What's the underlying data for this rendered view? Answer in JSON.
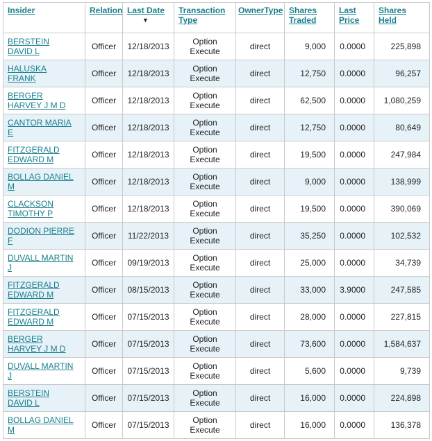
{
  "colors": {
    "link": "#1a7f8e",
    "row_alt": "#e6f2f8",
    "border": "#c9c9c9",
    "text": "#222222"
  },
  "table": {
    "sort_icon": "▼",
    "sorted_column": "Last Date",
    "sort_direction": "descending",
    "columns": [
      {
        "key": "insider",
        "label": "Insider"
      },
      {
        "key": "relation",
        "label": "Relation"
      },
      {
        "key": "last_date",
        "label": "Last Date"
      },
      {
        "key": "transaction_type",
        "label": "Transaction Type"
      },
      {
        "key": "owner_type",
        "label": "OwnerType"
      },
      {
        "key": "shares_traded",
        "label": "Shares Traded"
      },
      {
        "key": "last_price",
        "label": "Last Price"
      },
      {
        "key": "shares_held",
        "label": "Shares Held"
      }
    ],
    "rows": [
      {
        "insider": "BERSTEIN DAVID L",
        "relation": "Officer",
        "last_date": "12/18/2013",
        "transaction_type": "Option Execute",
        "owner_type": "direct",
        "shares_traded": "9,000",
        "last_price": "0.0000",
        "shares_held": "225,898"
      },
      {
        "insider": "HALUSKA FRANK",
        "relation": "Officer",
        "last_date": "12/18/2013",
        "transaction_type": "Option Execute",
        "owner_type": "direct",
        "shares_traded": "12,750",
        "last_price": "0.0000",
        "shares_held": "96,257"
      },
      {
        "insider": "BERGER HARVEY J M D",
        "relation": "Officer",
        "last_date": "12/18/2013",
        "transaction_type": "Option Execute",
        "owner_type": "direct",
        "shares_traded": "62,500",
        "last_price": "0.0000",
        "shares_held": "1,080,259"
      },
      {
        "insider": "CANTOR MARIA E",
        "relation": "Officer",
        "last_date": "12/18/2013",
        "transaction_type": "Option Execute",
        "owner_type": "direct",
        "shares_traded": "12,750",
        "last_price": "0.0000",
        "shares_held": "80,649"
      },
      {
        "insider": "FITZGERALD EDWARD M",
        "relation": "Officer",
        "last_date": "12/18/2013",
        "transaction_type": "Option Execute",
        "owner_type": "direct",
        "shares_traded": "19,500",
        "last_price": "0.0000",
        "shares_held": "247,984"
      },
      {
        "insider": "BOLLAG DANIEL M",
        "relation": "Officer",
        "last_date": "12/18/2013",
        "transaction_type": "Option Execute",
        "owner_type": "direct",
        "shares_traded": "9,000",
        "last_price": "0.0000",
        "shares_held": "138,999"
      },
      {
        "insider": "CLACKSON TIMOTHY P",
        "relation": "Officer",
        "last_date": "12/18/2013",
        "transaction_type": "Option Execute",
        "owner_type": "direct",
        "shares_traded": "19,500",
        "last_price": "0.0000",
        "shares_held": "390,069"
      },
      {
        "insider": "DODION PIERRE F",
        "relation": "Officer",
        "last_date": "11/22/2013",
        "transaction_type": "Option Execute",
        "owner_type": "direct",
        "shares_traded": "35,250",
        "last_price": "0.0000",
        "shares_held": "102,532"
      },
      {
        "insider": "DUVALL MARTIN J",
        "relation": "Officer",
        "last_date": "09/19/2013",
        "transaction_type": "Option Execute",
        "owner_type": "direct",
        "shares_traded": "25,000",
        "last_price": "0.0000",
        "shares_held": "34,739"
      },
      {
        "insider": "FITZGERALD EDWARD M",
        "relation": "Officer",
        "last_date": "08/15/2013",
        "transaction_type": "Option Execute",
        "owner_type": "direct",
        "shares_traded": "33,000",
        "last_price": "3.9000",
        "shares_held": "247,585"
      },
      {
        "insider": "FITZGERALD EDWARD M",
        "relation": "Officer",
        "last_date": "07/15/2013",
        "transaction_type": "Option Execute",
        "owner_type": "direct",
        "shares_traded": "28,000",
        "last_price": "0.0000",
        "shares_held": "227,815"
      },
      {
        "insider": "BERGER HARVEY J M D",
        "relation": "Officer",
        "last_date": "07/15/2013",
        "transaction_type": "Option Execute",
        "owner_type": "direct",
        "shares_traded": "73,600",
        "last_price": "0.0000",
        "shares_held": "1,584,637"
      },
      {
        "insider": "DUVALL MARTIN J",
        "relation": "Officer",
        "last_date": "07/15/2013",
        "transaction_type": "Option Execute",
        "owner_type": "direct",
        "shares_traded": "5,600",
        "last_price": "0.0000",
        "shares_held": "9,739"
      },
      {
        "insider": "BERSTEIN DAVID L",
        "relation": "Officer",
        "last_date": "07/15/2013",
        "transaction_type": "Option Execute",
        "owner_type": "direct",
        "shares_traded": "16,000",
        "last_price": "0.0000",
        "shares_held": "224,898"
      },
      {
        "insider": "BOLLAG DANIEL M",
        "relation": "Officer",
        "last_date": "07/15/2013",
        "transaction_type": "Option Execute",
        "owner_type": "direct",
        "shares_traded": "16,000",
        "last_price": "0.0000",
        "shares_held": "136,378"
      }
    ]
  }
}
